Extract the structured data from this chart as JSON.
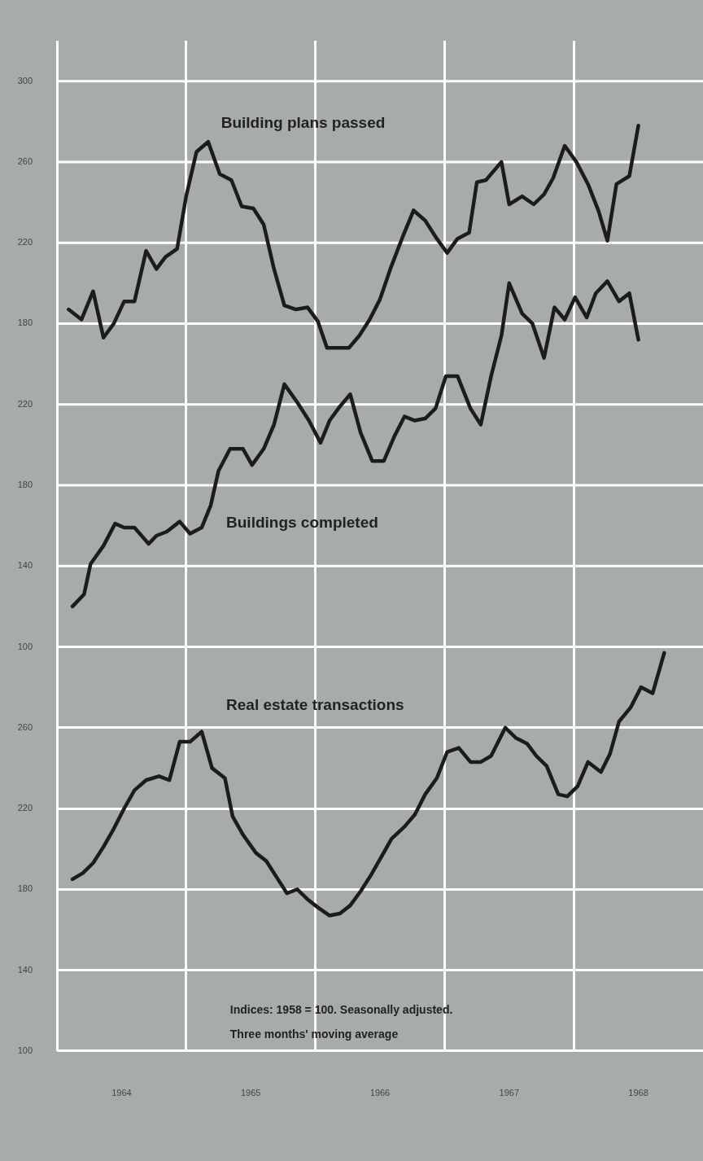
{
  "chart_data": {
    "type": "line",
    "annotations": [
      "Indices: 1958 = 100. Seasonally adjusted.",
      "Three months' moving average"
    ],
    "xlim": [
      1964,
      1969
    ],
    "xticks": [
      {
        "value": 1964,
        "label": null
      },
      {
        "value": 1964.5,
        "label": "1964"
      },
      {
        "value": 1965,
        "label": null
      },
      {
        "value": 1965.5,
        "label": "1965"
      },
      {
        "value": 1966,
        "label": null
      },
      {
        "value": 1966.5,
        "label": "1966"
      },
      {
        "value": 1967,
        "label": null
      },
      {
        "value": 1967.5,
        "label": "1967"
      },
      {
        "value": 1968,
        "label": null
      },
      {
        "value": 1968.5,
        "label": "1968"
      }
    ],
    "ylim": [
      100,
      600
    ],
    "yticks": [
      100,
      140,
      180,
      220,
      260
    ],
    "y2lim": [
      -100,
      400
    ],
    "y2ticks": [
      100,
      140,
      180,
      220
    ],
    "y3lim": [
      -180,
      320
    ],
    "y3ticks": [
      180,
      220,
      260,
      300
    ],
    "grid": true,
    "legend": false,
    "marker": "none",
    "line_style": "solid",
    "series": [
      {
        "name": "Building plans passed",
        "color": "#1c1c1c",
        "axis": "y3",
        "x": [
          1964.09,
          1964.19,
          1964.28,
          1964.36,
          1964.44,
          1964.52,
          1964.6,
          1964.69,
          1964.77,
          1964.84,
          1964.93,
          1965.0,
          1965.08,
          1965.17,
          1965.26,
          1965.35,
          1965.43,
          1965.52,
          1965.6,
          1965.68,
          1965.76,
          1965.85,
          1965.94,
          1966.02,
          1966.09,
          1966.18,
          1966.26,
          1966.34,
          1966.42,
          1966.5,
          1966.58,
          1966.67,
          1966.76,
          1966.85,
          1966.94,
          1967.02,
          1967.1,
          1967.19,
          1967.25,
          1967.32,
          1967.44,
          1967.5,
          1967.6,
          1967.69,
          1967.77,
          1967.84,
          1967.93,
          1968.02,
          1968.11,
          1968.19,
          1968.26,
          1968.33,
          1968.43,
          1968.5
        ],
        "values": [
          187,
          182,
          196,
          173,
          180,
          191,
          191,
          216,
          207,
          213,
          217,
          243,
          265,
          270,
          254,
          251,
          238,
          237,
          229,
          207,
          189,
          187,
          188,
          181,
          168,
          168,
          168,
          174,
          182,
          192,
          207,
          222,
          236,
          231,
          222,
          215,
          222,
          225,
          250,
          251,
          260,
          239,
          243,
          239,
          244,
          252,
          268,
          260,
          249,
          236,
          221,
          249,
          253,
          278
        ]
      },
      {
        "name": "Buildings completed",
        "color": "#1c1c1c",
        "axis": "y2",
        "x": [
          1964.12,
          1964.21,
          1964.26,
          1964.36,
          1964.45,
          1964.52,
          1964.6,
          1964.71,
          1964.77,
          1964.85,
          1964.95,
          1965.03,
          1965.12,
          1965.19,
          1965.25,
          1965.34,
          1965.44,
          1965.51,
          1965.6,
          1965.68,
          1965.76,
          1965.86,
          1965.95,
          1966.04,
          1966.11,
          1966.19,
          1966.27,
          1966.35,
          1966.44,
          1966.53,
          1966.61,
          1966.69,
          1966.77,
          1966.85,
          1966.93,
          1967.01,
          1967.1,
          1967.2,
          1967.28,
          1967.36,
          1967.44,
          1967.5,
          1967.6,
          1967.68,
          1967.77,
          1967.85,
          1967.93,
          1968.01,
          1968.1,
          1968.17,
          1968.26,
          1968.35,
          1968.43,
          1968.5
        ],
        "values": [
          120,
          126,
          141,
          150,
          161,
          159,
          159,
          151,
          155,
          157,
          162,
          156,
          159,
          170,
          187,
          198,
          198,
          190,
          198,
          210,
          230,
          221,
          212,
          201,
          212,
          219,
          225,
          206,
          192,
          192,
          204,
          214,
          212,
          213,
          218,
          234,
          234,
          218,
          210,
          234,
          254,
          280,
          265,
          260,
          243,
          268,
          262,
          273,
          263,
          275,
          281,
          271,
          275,
          252
        ]
      },
      {
        "name": "Real estate transactions",
        "color": "#1c1c1c",
        "axis": "y",
        "x": [
          1964.12,
          1964.2,
          1964.28,
          1964.36,
          1964.44,
          1964.52,
          1964.6,
          1964.69,
          1964.79,
          1964.87,
          1964.95,
          1965.03,
          1965.12,
          1965.2,
          1965.3,
          1965.36,
          1965.44,
          1965.54,
          1965.62,
          1965.7,
          1965.78,
          1965.86,
          1965.94,
          1966.02,
          1966.11,
          1966.19,
          1966.27,
          1966.35,
          1966.43,
          1966.51,
          1966.59,
          1966.69,
          1966.77,
          1966.85,
          1966.94,
          1967.02,
          1967.11,
          1967.2,
          1967.28,
          1967.36,
          1967.47,
          1967.55,
          1967.64,
          1967.71,
          1967.79,
          1967.88,
          1967.95,
          1968.03,
          1968.11,
          1968.21,
          1968.28,
          1968.35,
          1968.44,
          1968.52,
          1968.61,
          1968.7
        ],
        "values": [
          185,
          188,
          193,
          201,
          210,
          220,
          229,
          234,
          236,
          234,
          253,
          253,
          258,
          240,
          235,
          216,
          207,
          198,
          194,
          186,
          178,
          180,
          175,
          171,
          167,
          168,
          172,
          179,
          187,
          196,
          205,
          211,
          217,
          227,
          235,
          248,
          250,
          243,
          243,
          246,
          260,
          255,
          252,
          246,
          241,
          227,
          226,
          231,
          243,
          238,
          247,
          263,
          270,
          280,
          277,
          297
        ]
      }
    ]
  }
}
